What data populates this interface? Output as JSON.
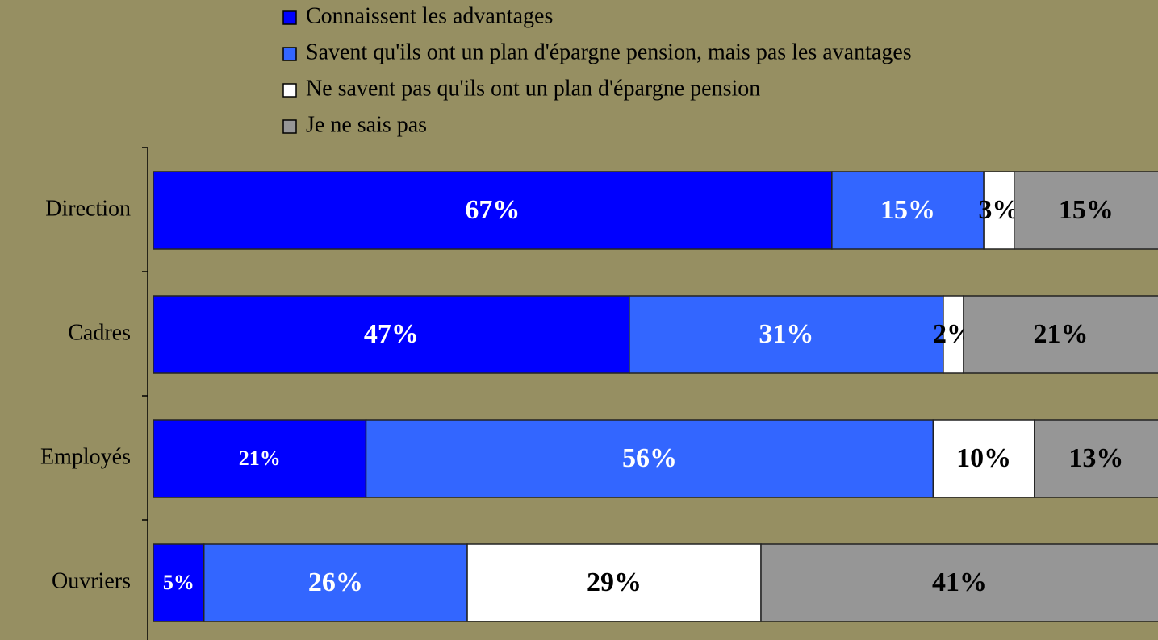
{
  "chart_data": {
    "type": "stacked-barh",
    "categories": [
      "Direction",
      "Cadres",
      "Employés",
      "Ouvriers"
    ],
    "series": [
      {
        "name": "Connaissent les advantages",
        "color": "#0000ff",
        "values": [
          67,
          47,
          21,
          5
        ],
        "value_labels": [
          "67%",
          "47%",
          "21%",
          "5%"
        ]
      },
      {
        "name": "Savent qu'ils ont un plan d'épargne pension, mais pas les avantages",
        "color": "#3366ff",
        "values": [
          15,
          31,
          56,
          26
        ],
        "value_labels": [
          "15%",
          "31%",
          "56%",
          "26%"
        ]
      },
      {
        "name": "Ne savent pas qu'ils ont un plan d'épargne pension",
        "color": "#ffffff",
        "values": [
          3,
          2,
          10,
          29
        ],
        "value_labels": [
          "3%",
          "2%",
          "10%",
          "29%"
        ]
      },
      {
        "name": "Je ne sais pas",
        "color": "#969696",
        "values": [
          15,
          21,
          13,
          41
        ],
        "value_labels": [
          "15%",
          "21%",
          "13%",
          "41%"
        ]
      }
    ],
    "xlim": [
      0,
      100
    ],
    "legend": "top"
  }
}
